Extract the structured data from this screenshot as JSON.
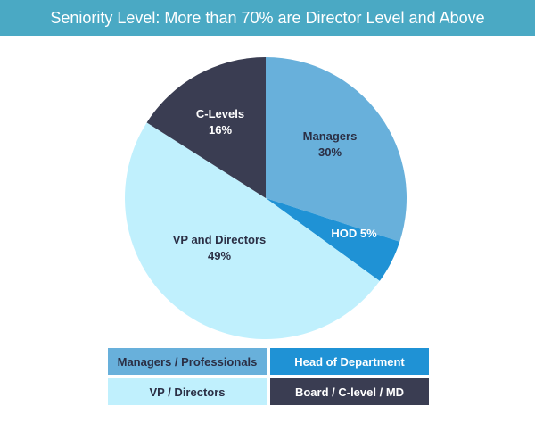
{
  "title": "Seniority Level: More than 70% are Director Level and Above",
  "chart_data": {
    "type": "pie",
    "slices": [
      {
        "label": "Managers",
        "value_text": "30%",
        "value": 30,
        "color": "#68b0db",
        "text_color": "#2b2f45"
      },
      {
        "label": "HOD",
        "value_text": "5%",
        "value": 5,
        "color": "#1f92d5",
        "text_color": "#ffffff"
      },
      {
        "label": "VP and Directors",
        "value_text": "49%",
        "value": 49,
        "color": "#c0f0fd",
        "text_color": "#2b2f45"
      },
      {
        "label": "C-Levels",
        "value_text": "16%",
        "value": 16,
        "color": "#3a3d52",
        "text_color": "#ffffff"
      }
    ],
    "legend": [
      {
        "label": "Managers / Professionals",
        "color": "#68b0db",
        "text_color": "#2b2f45"
      },
      {
        "label": "Head of Department",
        "color": "#1f92d5",
        "text_color": "#ffffff"
      },
      {
        "label": "VP / Directors",
        "color": "#c0f0fd",
        "text_color": "#2b2f45"
      },
      {
        "label": "Board / C-level / MD",
        "color": "#3a3d52",
        "text_color": "#ffffff"
      }
    ]
  }
}
